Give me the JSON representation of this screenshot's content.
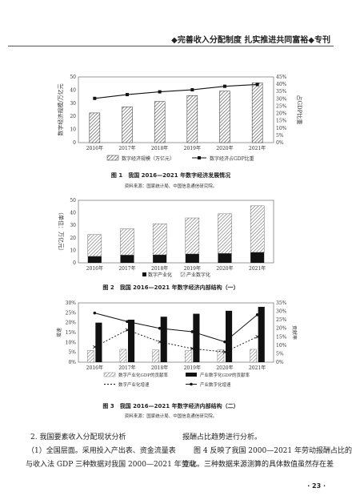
{
  "header": {
    "title": "◆完善收入分配制度 扎实推进共同富裕◆专刊"
  },
  "figures": [
    {
      "caption": "图 1　我国 2016—2021 年数字经济发展情况",
      "source": "资料来源：国家统计局、中国信息通信研究院。",
      "chart_data": {
        "type": "bar",
        "categories": [
          "2016年",
          "2017年",
          "2018年",
          "2019年",
          "2020年",
          "2021年"
        ],
        "series": [
          {
            "name": "数字经济规模（万亿元）",
            "kind": "bar",
            "axis": "left",
            "values": [
              22.6,
              27.2,
              31.3,
              35.8,
              39.2,
              45.5
            ]
          },
          {
            "name": "数字经济占GDP比重",
            "kind": "line",
            "axis": "right",
            "values": [
              30.3,
              32.9,
              34.8,
              36.2,
              38.6,
              39.8
            ]
          }
        ],
        "ylabel": "数字经济规模/万亿元",
        "y2label": "占GDP比重",
        "yticks": [
          "0",
          "10",
          "20",
          "30",
          "40",
          "50"
        ],
        "y2ticks": [
          "0%",
          "5%",
          "10%",
          "15%",
          "20%",
          "25%",
          "30%",
          "35%",
          "40%",
          "45%"
        ],
        "ylim": [
          0,
          50
        ],
        "y2lim": [
          0,
          45
        ],
        "legend": "bottom"
      }
    },
    {
      "caption": "图 2　我国 2016—2021 年数字经济内部结构（一）",
      "source": "",
      "chart_data": {
        "type": "bar",
        "stacked": true,
        "categories": [
          "2016年",
          "2017年",
          "2018年",
          "2019年",
          "2020年",
          "2021年"
        ],
        "series": [
          {
            "name": "数字产业化",
            "values": [
              5.2,
              6.2,
              6.4,
              7.1,
              7.5,
              8.4
            ]
          },
          {
            "name": "产业数字化",
            "values": [
              17.4,
              21.0,
              24.9,
              28.8,
              31.7,
              37.2
            ]
          }
        ],
        "ylabel": "（单位：万亿元）",
        "yticks": [
          "0",
          "10",
          "20",
          "30",
          "40",
          "50"
        ],
        "ylim": [
          0,
          50
        ],
        "legend": "bottom"
      }
    },
    {
      "caption": "图 3　我国 2016—2021 年数字经济内部结构（二）",
      "source": "资料来源：国家统计局、中国信息通信研究院。",
      "chart_data": {
        "type": "bar",
        "categories": [
          "2016年",
          "2017年",
          "2018年",
          "2019年",
          "2020年",
          "2021年"
        ],
        "series": [
          {
            "name": "数字产业化GDP的贡献率",
            "kind": "bar",
            "axis": "left",
            "values": [
              6.0,
              6.5,
              6.2,
              5.8,
              6.3,
              6.5
            ]
          },
          {
            "name": "产业数字化GDP的贡献率",
            "kind": "bar",
            "axis": "left",
            "values": [
              20.0,
              21.5,
              23.0,
              24.5,
              26.0,
              28.0
            ]
          },
          {
            "name": "数字产业化增速",
            "kind": "line",
            "axis": "right",
            "values": [
              9.0,
              19.0,
              12.0,
              8.0,
              6.0,
              15.0
            ]
          },
          {
            "name": "产业数字化增速",
            "kind": "line",
            "axis": "right",
            "values": [
              29.0,
              24.0,
              20.0,
              18.0,
              12.0,
              28.0
            ]
          }
        ],
        "ylabel": "增速",
        "y2label": "贡献率",
        "yticks": [
          "0%",
          "5%",
          "10%",
          "15%",
          "20%",
          "25%",
          "30%"
        ],
        "y2ticks": [
          "0%",
          "5%",
          "10%",
          "15%",
          "20%",
          "25%",
          "30%",
          "35%"
        ],
        "ylim": [
          0,
          30
        ],
        "y2lim": [
          0,
          35
        ],
        "legend": "bottom"
      }
    }
  ],
  "body": {
    "left": [
      "2. 我国要素收入分配现状分析",
      "（1）全国层面。采用投入产出表、资金流量表",
      "与收入法 GDP 三种数据对我国 2000—2021 年劳动"
    ],
    "right": [
      "报酬占比趋势进行分析。",
      "图 4 反映了我国 2000—2021 年劳动报酬占比的",
      "变化。三种数据来源测算的具体数值虽然存在差"
    ]
  },
  "page": {
    "number": "· 23 ·"
  }
}
